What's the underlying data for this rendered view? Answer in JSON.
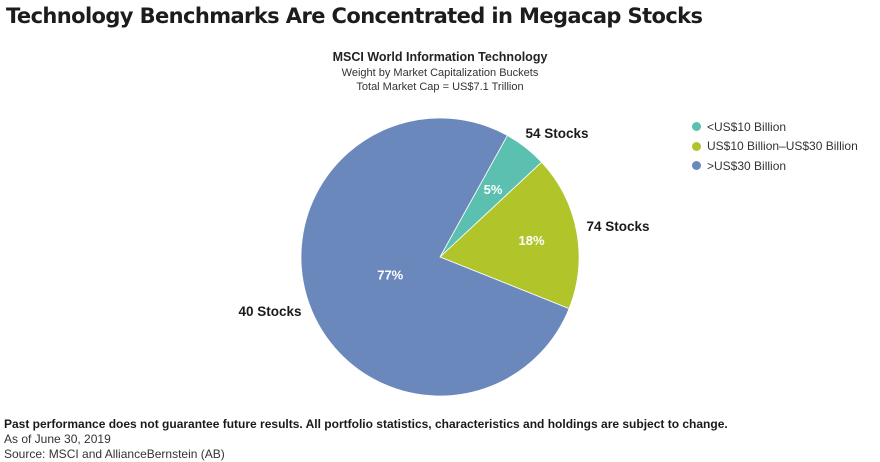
{
  "title": "Technology Benchmarks Are Concentrated in Megacap Stocks",
  "chart_data": {
    "type": "pie",
    "title": "MSCI World Information Technology",
    "subtitle": [
      "Weight by Market Capitalization Buckets",
      "Total Market Cap = US$7.1 Trillion"
    ],
    "legend_position": "right",
    "slices": [
      {
        "name": "<US$10 Billion",
        "value": 5,
        "label": "5%",
        "stocks": "54 Stocks",
        "color": "#5bc0b0"
      },
      {
        "name": "US$10 Billion–US$30 Billion",
        "value": 18,
        "label": "18%",
        "stocks": "74 Stocks",
        "color": "#b1c52a"
      },
      {
        "name": ">US$30 Billion",
        "value": 77,
        "label": "77%",
        "stocks": "40 Stocks",
        "color": "#6b88bc"
      }
    ]
  },
  "footer": {
    "disclaimer": "Past performance does not guarantee future results. All portfolio statistics, characteristics and holdings are subject to change.",
    "date": "As of June 30, 2019",
    "source": "Source: MSCI and AllianceBernstein (AB)"
  }
}
